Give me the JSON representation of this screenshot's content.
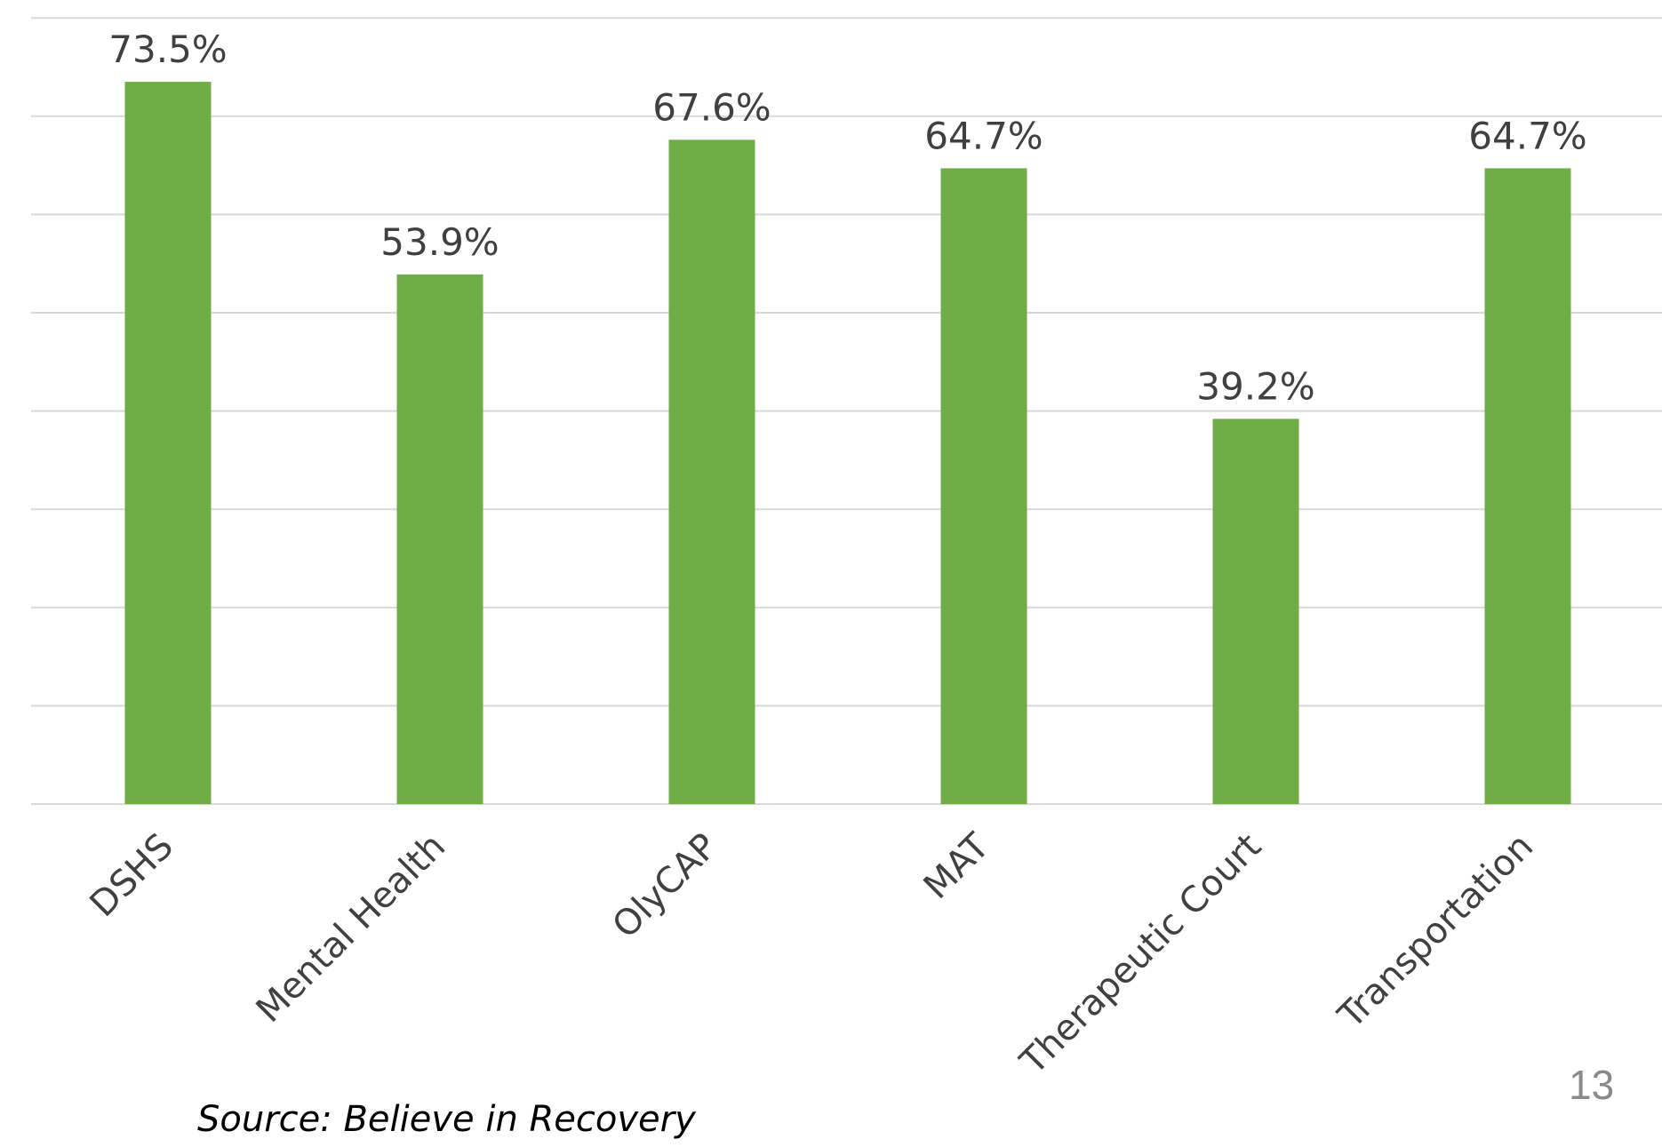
{
  "chart_data": {
    "type": "bar",
    "categories": [
      "DSHS",
      "Mental Health",
      "OlyCAP",
      "MAT",
      "Therapeutic Court",
      "Transportation"
    ],
    "values": [
      73.5,
      53.9,
      67.6,
      64.7,
      39.2,
      64.7
    ],
    "data_labels": [
      "73.5%",
      "53.9%",
      "67.6%",
      "64.7%",
      "39.2%",
      "64.7%"
    ],
    "ylim": [
      0,
      80
    ],
    "gridline_step": 10,
    "grid": true,
    "bar_color": "#70ad47",
    "grid_color": "#d9d9d9",
    "label_color": "#404040"
  },
  "source_note": "Source: Believe in Recovery",
  "page_number": "13"
}
